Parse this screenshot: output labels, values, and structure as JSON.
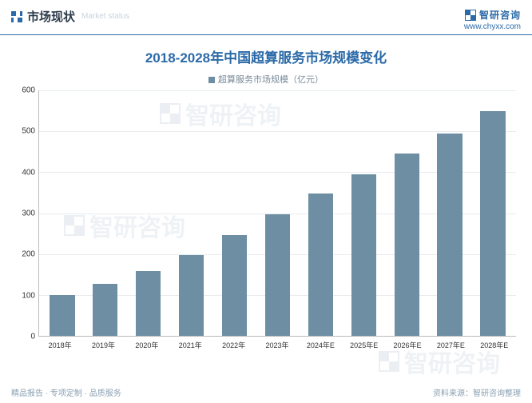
{
  "header": {
    "section_title_cn": "市场现状",
    "section_title_en": "Market status",
    "brand_name": "智研咨询",
    "brand_url": "www.chyxx.com"
  },
  "chart": {
    "type": "bar",
    "title": "2018-2028年中国超算服务市场规模变化",
    "legend": "超算服务市场规模（亿元）",
    "categories": [
      "2018年",
      "2019年",
      "2020年",
      "2021年",
      "2022年",
      "2023年",
      "2024年E",
      "2025年E",
      "2026年E",
      "2027年E",
      "2028年E"
    ],
    "values": [
      100,
      128,
      158,
      198,
      246,
      298,
      348,
      395,
      445,
      495,
      550
    ],
    "ylim": [
      0,
      600
    ],
    "ytick_step": 100,
    "yticks": [
      0,
      100,
      200,
      300,
      400,
      500,
      600
    ],
    "bar_color": "#6d8ea3",
    "background_color": "#ffffff",
    "grid_color": "#e8ecef",
    "axis_color": "#bbbbbb",
    "text_color": "#333333",
    "title_color": "#2b6aa8",
    "title_fontsize": 17,
    "label_fontsize": 10,
    "x_label_fontsize": 9,
    "bar_width": 0.58
  },
  "footer": {
    "left": "精品报告 · 专项定制 · 品质服务",
    "right": "资料来源：智研咨询整理"
  },
  "watermark": "智研咨询"
}
